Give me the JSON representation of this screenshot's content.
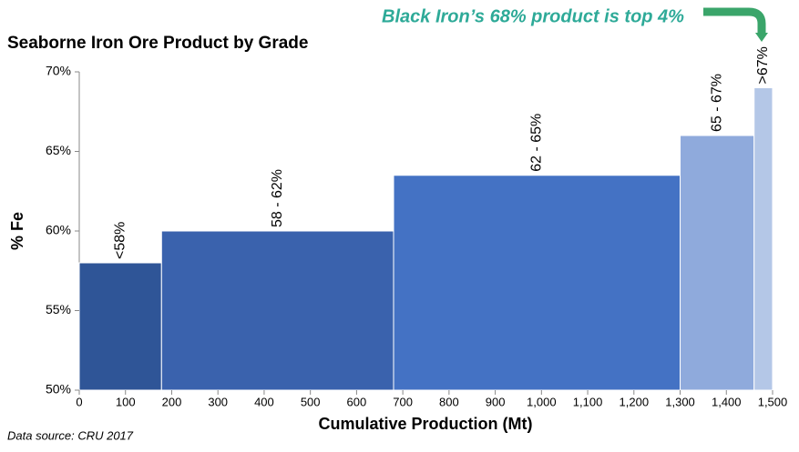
{
  "chart_data": {
    "type": "bar",
    "title": "Seaborne Iron Ore Product by Grade",
    "annotation": "Black Iron’s 68% product is top 4%",
    "source": "Data source: CRU 2017",
    "xlabel": "Cumulative Production (Mt)",
    "ylabel": "% Fe",
    "categories": [
      "<58%",
      "58 - 62%",
      "62 - 65%",
      "65 - 67%",
      ">67%"
    ],
    "bins": [
      0,
      178,
      680,
      1300,
      1460,
      1500
    ],
    "values": [
      58,
      60,
      63.5,
      66,
      69
    ],
    "colors": [
      "#2f5597",
      "#3a62ad",
      "#4472c4",
      "#8faadc",
      "#b4c7e7"
    ],
    "xlim": [
      0,
      1500
    ],
    "xticks": [
      0,
      100,
      200,
      300,
      400,
      500,
      600,
      700,
      800,
      900,
      {
        "value": 1000,
        "label": "1,000"
      },
      {
        "value": 1100,
        "label": "1,100"
      },
      {
        "value": 1200,
        "label": "1,200"
      },
      {
        "value": 1300,
        "label": "1,300"
      },
      {
        "value": 1400,
        "label": "1,400"
      },
      {
        "value": 1500,
        "label": "1,500"
      }
    ],
    "ylim": [
      50,
      70
    ],
    "yticks": [
      {
        "value": 50,
        "label": "50%"
      },
      {
        "value": 55,
        "label": "55%"
      },
      {
        "value": 60,
        "label": "60%"
      },
      {
        "value": 65,
        "label": "65%"
      },
      {
        "value": 70,
        "label": "70%"
      }
    ]
  }
}
